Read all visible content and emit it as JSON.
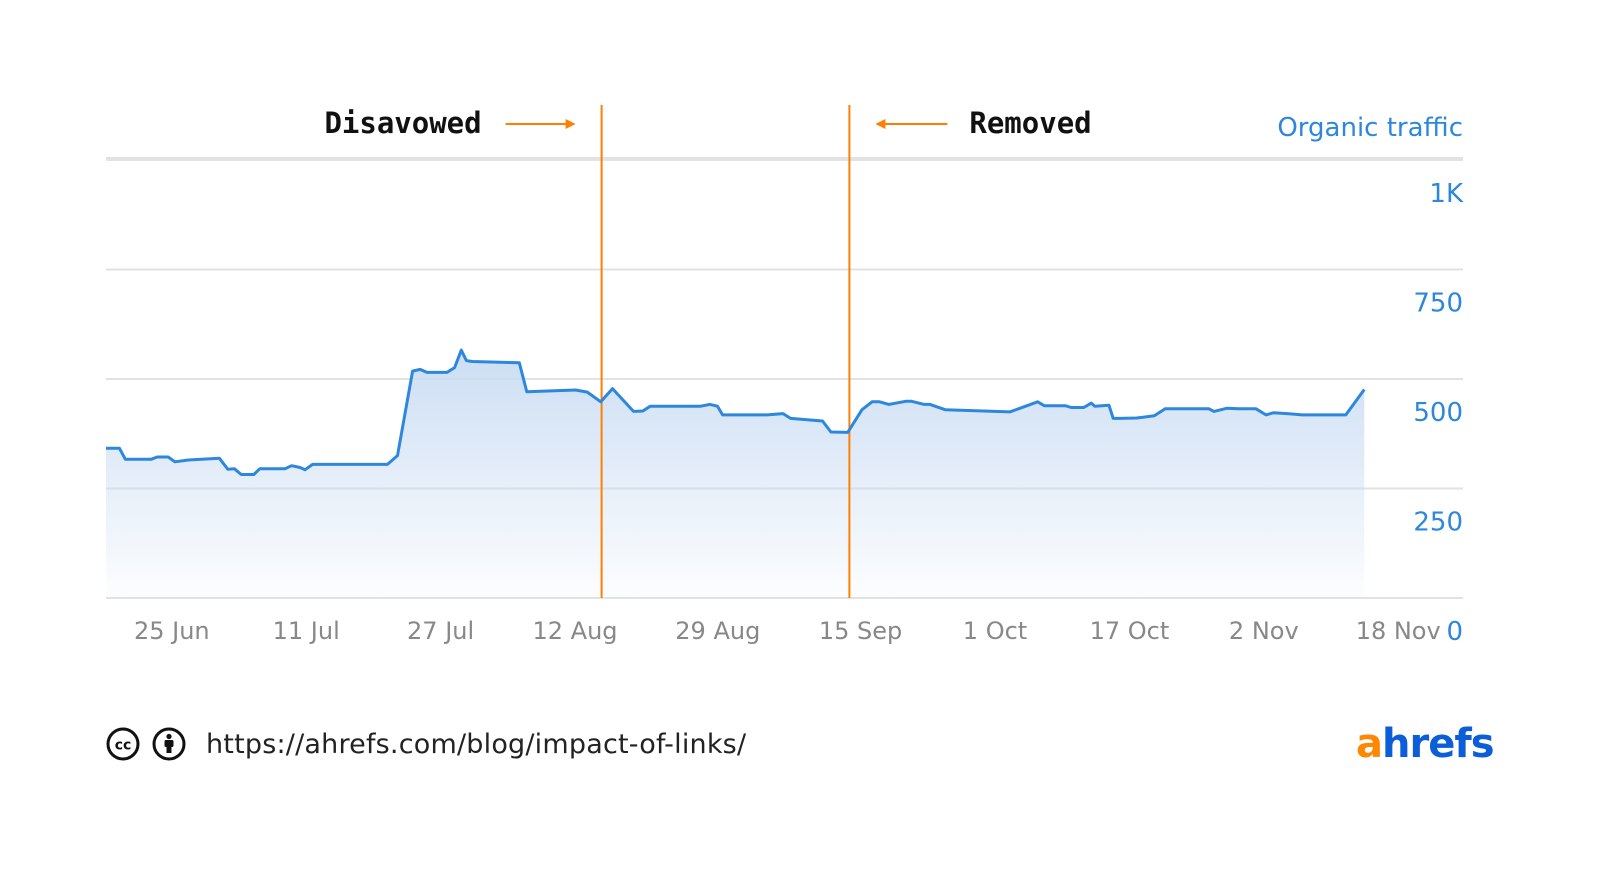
{
  "chart_data": {
    "type": "area",
    "legend": "Organic traffic",
    "y_ticks": [
      "0",
      "250",
      "500",
      "750",
      "1K"
    ],
    "ylim": [
      0,
      1000
    ],
    "x_ticks": [
      "25 Jun",
      "11 Jul",
      "27 Jul",
      "12 Aug",
      "29 Aug",
      "15 Sep",
      "1 Oct",
      "17 Oct",
      "2 Nov",
      "18 Nov"
    ],
    "x_tick_days": [
      7,
      23,
      39,
      55,
      72,
      89,
      105,
      121,
      137,
      153
    ],
    "annotations": [
      {
        "label": "Disavowed",
        "day": 59,
        "arrow": "right"
      },
      {
        "label": "Removed",
        "day": 88.5,
        "arrow": "left"
      }
    ],
    "series": [
      {
        "x": [
          0,
          1.6,
          2.3,
          5.4,
          6.1,
          7.4,
          8.2,
          9.8,
          13.5,
          14.5,
          15.3,
          16.1,
          17.6,
          18.3,
          21.3,
          22.1,
          23.1,
          23.7,
          24.6,
          33.5,
          34.7,
          36.5,
          37.4,
          38.2,
          40.6,
          41.5,
          42.3,
          42.9,
          43.6,
          49.2,
          50.1,
          55.9,
          57.3,
          58.9,
          60.3,
          62.8,
          63.9,
          64.8,
          70.8,
          71.9,
          72.8,
          73.4,
          78.7,
          80.6,
          81.5,
          85.3,
          86.3,
          88.3,
          90.0,
          91.2,
          92.1,
          93.2,
          95.2,
          95.9,
          97.4,
          98.1,
          99.9,
          107.6,
          108.8,
          110.9,
          111.7,
          114.2,
          114.9,
          116.4,
          117.3,
          117.7,
          119.4,
          119.9,
          120.7,
          122.7,
          124.8,
          126.1,
          127.1,
          131.3,
          131.9,
          133.4,
          134.8,
          136.9,
          138.1,
          139.0,
          141.2,
          142.4,
          147.6,
          149.8
        ],
        "values": [
          342,
          342,
          317,
          317,
          322,
          322,
          311,
          315,
          319,
          294,
          295,
          282,
          282,
          295,
          295,
          302,
          298,
          293,
          305,
          305,
          325,
          518,
          522,
          515,
          515,
          526,
          566,
          542,
          540,
          537,
          471,
          475,
          470,
          448,
          478,
          426,
          427,
          438,
          438,
          442,
          438,
          418,
          418,
          421,
          410,
          404,
          379,
          378,
          430,
          448,
          448,
          442,
          449,
          449,
          442,
          442,
          430,
          425,
          433,
          448,
          439,
          439,
          435,
          435,
          445,
          438,
          440,
          410,
          410,
          411,
          416,
          432,
          432,
          432,
          426,
          433,
          432,
          432,
          418,
          423,
          420,
          418,
          418,
          476
        ]
      }
    ]
  },
  "footer": {
    "cc_icon": "creative-commons-icon",
    "by_icon": "attribution-person-icon",
    "url": "https://ahrefs.com/blog/impact-of-links/"
  },
  "brand": {
    "logo_accent": "a",
    "logo_rest": "hrefs",
    "accent_color": "#ff8800",
    "brand_color": "#0b5ed7"
  },
  "colors": {
    "line": "#2d87dd",
    "annotation": "#ff7f00",
    "axis_text": "#2d87dd",
    "tick_text": "#888888",
    "grid": "#e2e2e2"
  }
}
